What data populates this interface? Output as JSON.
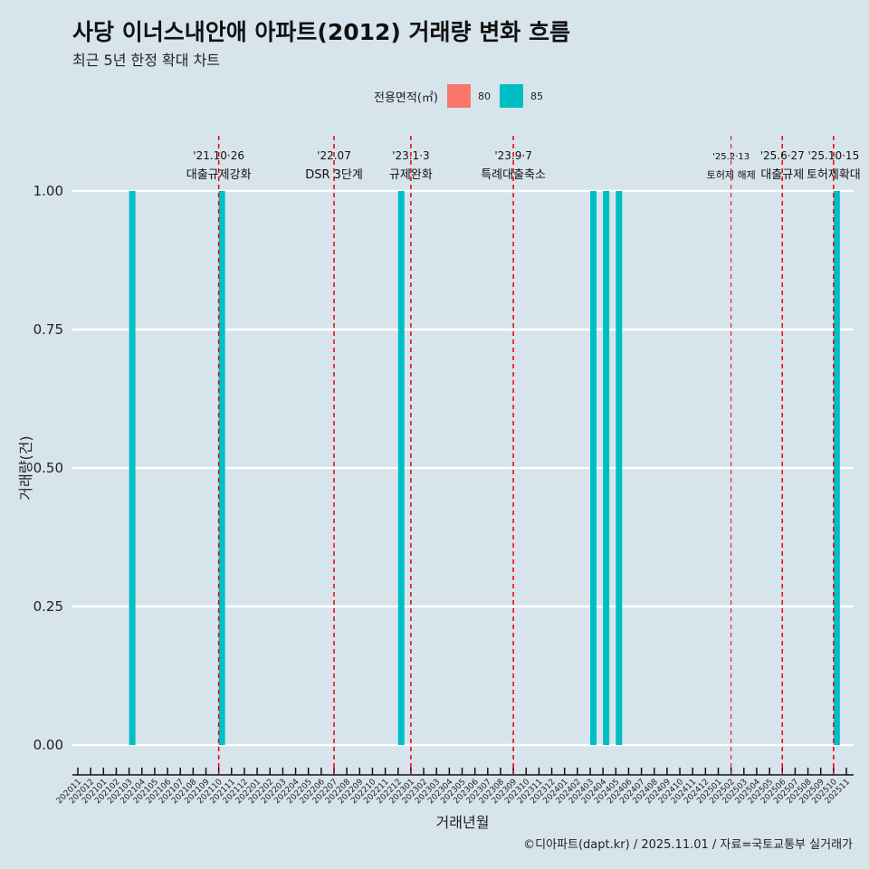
{
  "title": "사당 이너스내안애 아파트(2012) 거래량 변화 흐름",
  "subtitle": "최근 5년 한정 확대 차트",
  "caption": "©디아파트(dapt.kr) / 2025.11.01 / 자료=국토교통부 실거래가",
  "legend": {
    "title": "전용면적(㎡)",
    "items": [
      {
        "label": "80",
        "color": "#f8766d"
      },
      {
        "label": "85",
        "color": "#00bfc4"
      }
    ]
  },
  "chart_data": {
    "type": "bar",
    "xlabel": "거래년월",
    "ylabel": "거래량(건)",
    "ylim": [
      0,
      1
    ],
    "yticks": [
      "0.00",
      "0.25",
      "0.50",
      "0.75",
      "1.00"
    ],
    "categories": [
      "202011",
      "202012",
      "202101",
      "202102",
      "202103",
      "202104",
      "202105",
      "202106",
      "202107",
      "202108",
      "202109",
      "202110",
      "202111",
      "202112",
      "202201",
      "202202",
      "202203",
      "202204",
      "202205",
      "202206",
      "202207",
      "202208",
      "202209",
      "202210",
      "202211",
      "202212",
      "202301",
      "202302",
      "202303",
      "202304",
      "202305",
      "202306",
      "202307",
      "202308",
      "202309",
      "202310",
      "202311",
      "202312",
      "202401",
      "202402",
      "202403",
      "202404",
      "202405",
      "202406",
      "202407",
      "202408",
      "202409",
      "202410",
      "202411",
      "202412",
      "202501",
      "202502",
      "202503",
      "202504",
      "202505",
      "202506",
      "202507",
      "202508",
      "202509",
      "202510",
      "202511"
    ],
    "series": [
      {
        "name": "80",
        "color": "#f8766d",
        "points": []
      },
      {
        "name": "85",
        "color": "#00bfc4",
        "points": [
          {
            "x": "202103",
            "y": 1
          },
          {
            "x": "202110",
            "y": 1
          },
          {
            "x": "202212",
            "y": 1
          },
          {
            "x": "202403",
            "y": 1
          },
          {
            "x": "202404",
            "y": 1
          },
          {
            "x": "202405",
            "y": 1
          },
          {
            "x": "202510",
            "y": 1
          }
        ]
      }
    ],
    "annotations": [
      {
        "x": "202110",
        "date": "'21.10·26",
        "label": "대출규제강화"
      },
      {
        "x": "202207",
        "date": "'22.07",
        "label": "DSR 3단계"
      },
      {
        "x": "202301",
        "date": "'23.1·3",
        "label": "규제완화"
      },
      {
        "x": "202309",
        "date": "'23.9·7",
        "label": "특례대출축소"
      },
      {
        "x": "202502",
        "date": "'25.2·13",
        "label": "토허제 해제"
      },
      {
        "x": "202506",
        "date": "'25.6·27",
        "label": "대출규제"
      },
      {
        "x": "202510",
        "date": "'25.10·15",
        "label": "토허제확대"
      }
    ]
  }
}
